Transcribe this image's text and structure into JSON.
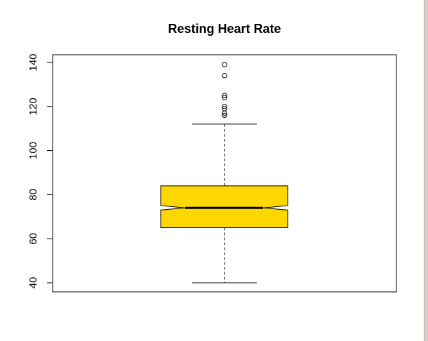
{
  "chart_data": {
    "type": "boxplot",
    "title": "Resting Heart Rate",
    "xlabel": "",
    "ylabel": "",
    "ylim": [
      36,
      141
    ],
    "yticks": [
      40,
      60,
      80,
      100,
      120,
      140
    ],
    "notched": true,
    "grid": false,
    "colors": {
      "box_fill": "#FFD700",
      "stroke": "#000000"
    },
    "box": {
      "whisker_low": 40,
      "q1": 65,
      "median": 74,
      "q3": 84,
      "whisker_high": 112,
      "notch_low": 73,
      "notch_high": 75,
      "outliers": [
        116,
        117,
        119,
        120,
        124,
        125,
        134,
        139
      ]
    }
  }
}
